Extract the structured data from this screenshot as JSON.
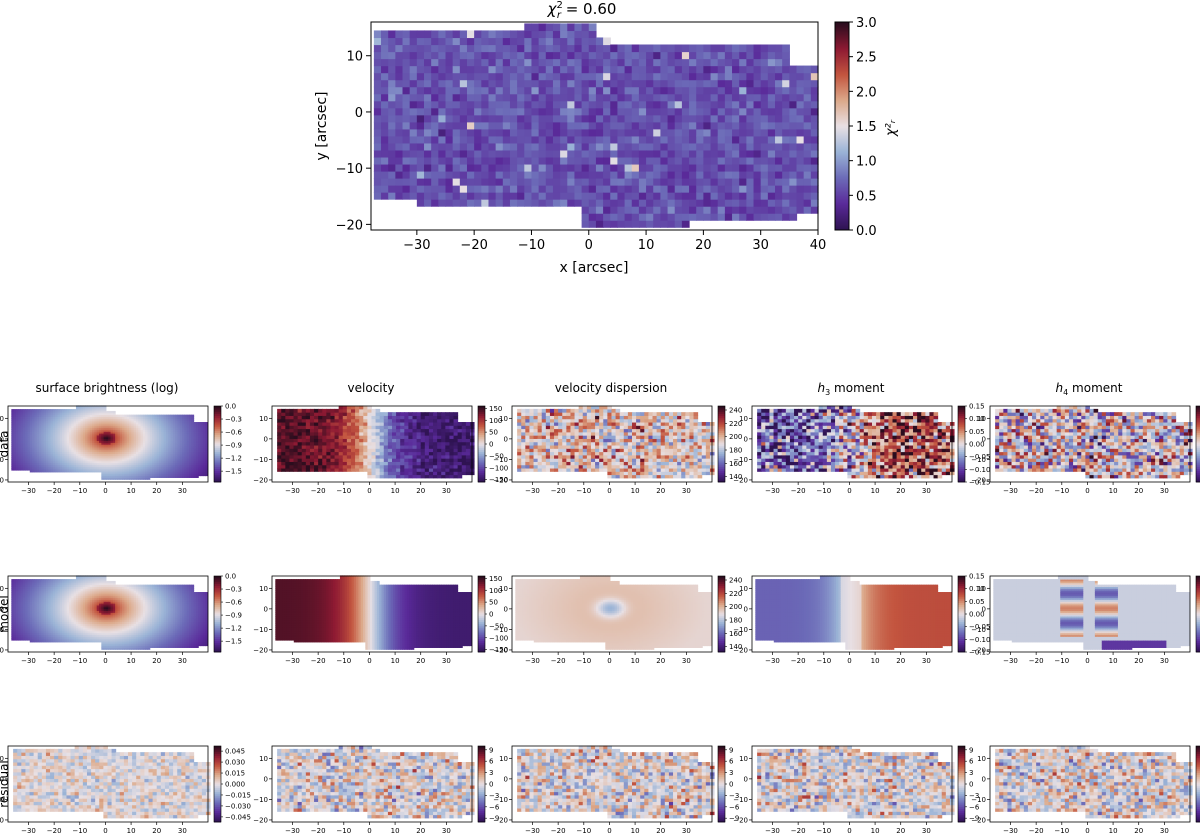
{
  "colors": {
    "cmap_stops": [
      "#2f1352",
      "#5a2a9a",
      "#6c6bb8",
      "#9ab3d6",
      "#e8e0e4",
      "#dca98a",
      "#c3553f",
      "#8e1a33",
      "#2b0d1e"
    ],
    "background": "#ffffff",
    "axis": "#000000"
  },
  "chart_data": [
    {
      "id": "chi2-map",
      "type": "heatmap",
      "title_prefix": "χ",
      "title_sup": "2",
      "title_sub": "r",
      "title_value": " = 0.60",
      "xlabel": "x [arcsec]",
      "ylabel": "y [arcsec]",
      "xlim": [
        -38,
        40
      ],
      "ylim": [
        -21,
        16
      ],
      "xticks": [
        "−30",
        "−20",
        "−10",
        "0",
        "10",
        "20",
        "30",
        "40"
      ],
      "xtick_values": [
        -30,
        -20,
        -10,
        0,
        10,
        20,
        30,
        40
      ],
      "yticks": [
        "10",
        "0",
        "−10",
        "−20"
      ],
      "ytick_values": [
        10,
        0,
        -10,
        -20
      ],
      "colorbar_label": "χ²ᵣ",
      "colorbar_range": [
        0,
        3
      ],
      "colorbar_ticks": [
        "0.0",
        "0.5",
        "1.0",
        "1.5",
        "2.0",
        "2.5",
        "3.0"
      ],
      "colorbar_tick_values": [
        0,
        0.5,
        1,
        1.5,
        2,
        2.5,
        3
      ],
      "typical_value": 0.6
    }
  ],
  "grid": {
    "column_titles": [
      {
        "text": "surface brightness (log)",
        "italic_prefix": "",
        "sub": ""
      },
      {
        "text": "velocity",
        "italic_prefix": "",
        "sub": ""
      },
      {
        "text": "velocity dispersion",
        "italic_prefix": "",
        "sub": ""
      },
      {
        "text": " moment",
        "italic_prefix": "h",
        "sub": "3"
      },
      {
        "text": " moment",
        "italic_prefix": "h",
        "sub": "4"
      }
    ],
    "row_labels": [
      "data",
      "model",
      "residual"
    ],
    "xticks": [
      "−30",
      "−20",
      "−10",
      "0",
      "10",
      "20",
      "30"
    ],
    "xtick_values": [
      -30,
      -20,
      -10,
      0,
      10,
      20,
      30
    ],
    "yticks": [
      "10",
      "0",
      "−10",
      "−20"
    ],
    "ytick_values": [
      10,
      0,
      -10,
      -20
    ],
    "colorbars": {
      "sb": {
        "range": [
          -1.75,
          0
        ],
        "ticks": [
          "0.0",
          "−0.3",
          "−0.6",
          "−0.9",
          "−1.2",
          "−1.5"
        ],
        "values": [
          0,
          -0.3,
          -0.6,
          -0.9,
          -1.2,
          -1.5
        ]
      },
      "vel": {
        "range": [
          -160,
          160
        ],
        "ticks": [
          "150",
          "100",
          "50",
          "0",
          "−50",
          "−100",
          "−150"
        ],
        "values": [
          150,
          100,
          50,
          0,
          -50,
          -100,
          -150
        ]
      },
      "disp": {
        "range": [
          132,
          246
        ],
        "ticks": [
          "240",
          "220",
          "200",
          "180",
          "160",
          "140"
        ],
        "values": [
          240,
          220,
          200,
          180,
          160,
          140
        ]
      },
      "h3": {
        "range": [
          -0.15,
          0.15
        ],
        "ticks": [
          "0.15",
          "0.10",
          "0.05",
          "0.00",
          "−0.05",
          "−0.10",
          "−0.15"
        ],
        "values": [
          0.15,
          0.1,
          0.05,
          0,
          -0.05,
          -0.1,
          -0.15
        ]
      },
      "h4": {
        "range": [
          -0.15,
          0.15
        ],
        "ticks": [
          "0.15",
          "0.10",
          "0.05",
          "0.00",
          "−0.05",
          "−0.10",
          "−0.15"
        ],
        "values": [
          0.15,
          0.1,
          0.05,
          0,
          -0.05,
          -0.1,
          -0.15
        ]
      },
      "res_sb": {
        "range": [
          -0.052,
          0.052
        ],
        "ticks": [
          "0.045",
          "0.030",
          "0.015",
          "0.000",
          "−0.015",
          "−0.030",
          "−0.045"
        ],
        "values": [
          0.045,
          0.03,
          0.015,
          0,
          -0.015,
          -0.03,
          -0.045
        ]
      },
      "res": {
        "range": [
          -10,
          10
        ],
        "ticks": [
          "9",
          "6",
          "3",
          "0",
          "−3",
          "−6",
          "−9"
        ],
        "values": [
          9,
          6,
          3,
          0,
          -3,
          -6,
          -9
        ]
      }
    }
  }
}
